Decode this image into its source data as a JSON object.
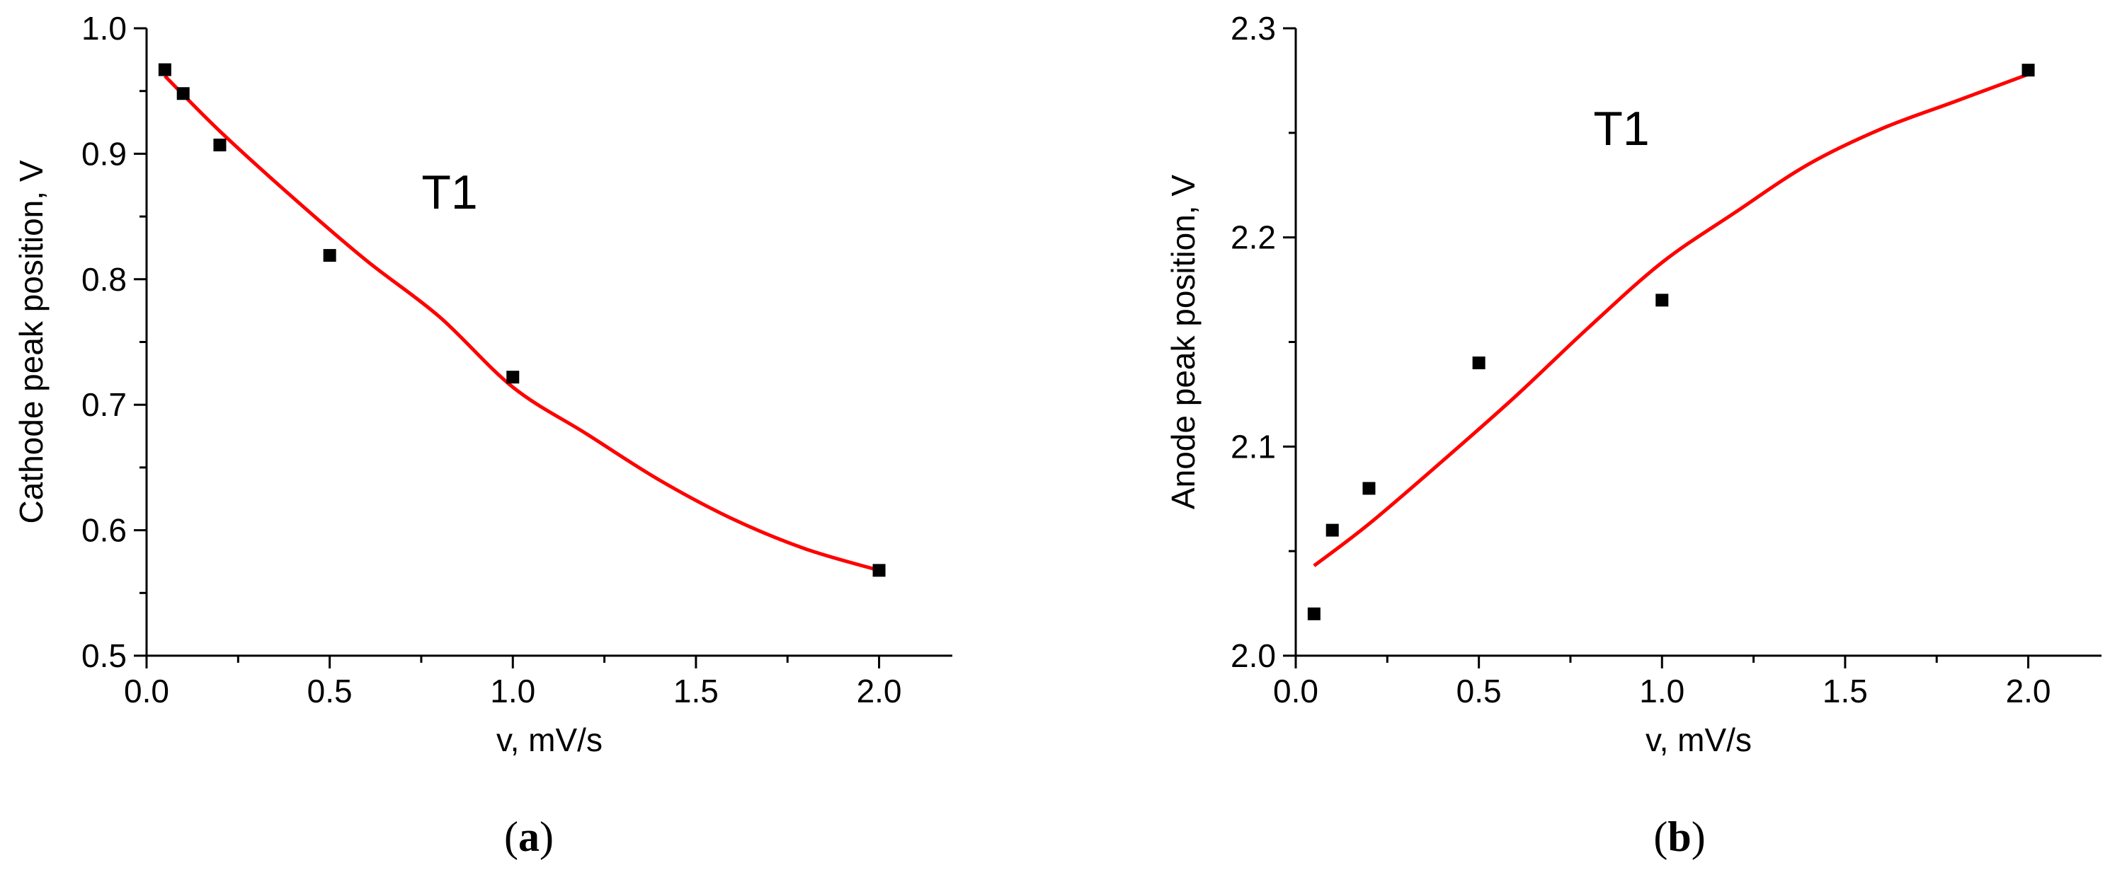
{
  "panels": [
    {
      "label_open": "(",
      "label_letter": "a",
      "label_close": ")"
    },
    {
      "label_open": "(",
      "label_letter": "b",
      "label_close": ")"
    }
  ],
  "chart_data": [
    {
      "type": "scatter",
      "xlabel": "v, mV/s",
      "ylabel": "Cathode peak position, V",
      "annotation": "T1",
      "xlim": [
        0.0,
        2.2
      ],
      "ylim": [
        0.5,
        1.0
      ],
      "xticks": [
        0.0,
        0.5,
        1.0,
        1.5,
        2.0
      ],
      "xtick_labels": [
        "0.0",
        "0.5",
        "1.0",
        "1.5",
        "2.0"
      ],
      "yticks": [
        0.5,
        0.6,
        0.7,
        0.8,
        0.9,
        1.0
      ],
      "ytick_labels": [
        "0.5",
        "0.6",
        "0.7",
        "0.8",
        "0.9",
        "1.0"
      ],
      "grid": false,
      "marker_color": "#000000",
      "fit_color": "#ff0000",
      "points": {
        "x": [
          0.05,
          0.1,
          0.2,
          0.5,
          1.0,
          2.0
        ],
        "y": [
          0.967,
          0.948,
          0.907,
          0.819,
          0.722,
          0.568
        ]
      },
      "fit_curve": {
        "x": [
          0.05,
          0.2,
          0.4,
          0.6,
          0.8,
          1.0,
          1.2,
          1.4,
          1.6,
          1.8,
          2.0
        ],
        "y": [
          0.962,
          0.918,
          0.865,
          0.815,
          0.77,
          0.714,
          0.677,
          0.64,
          0.609,
          0.585,
          0.568
        ]
      }
    },
    {
      "type": "scatter",
      "xlabel": "v, mV/s",
      "ylabel": "Anode peak position, V",
      "annotation": "T1",
      "xlim": [
        0.0,
        2.2
      ],
      "ylim": [
        2.0,
        2.3
      ],
      "xticks": [
        0.0,
        0.5,
        1.0,
        1.5,
        2.0
      ],
      "xtick_labels": [
        "0.0",
        "0.5",
        "1.0",
        "1.5",
        "2.0"
      ],
      "yticks": [
        2.0,
        2.1,
        2.2,
        2.3
      ],
      "ytick_labels": [
        "2.0",
        "2.1",
        "2.2",
        "2.3"
      ],
      "grid": false,
      "marker_color": "#000000",
      "fit_color": "#ff0000",
      "points": {
        "x": [
          0.05,
          0.1,
          0.2,
          0.5,
          1.0,
          2.0
        ],
        "y": [
          2.02,
          2.06,
          2.08,
          2.14,
          2.17,
          2.28
        ]
      },
      "fit_curve": {
        "x": [
          0.05,
          0.2,
          0.4,
          0.6,
          0.8,
          1.0,
          1.2,
          1.4,
          1.6,
          1.8,
          2.0
        ],
        "y": [
          2.043,
          2.063,
          2.093,
          2.124,
          2.157,
          2.188,
          2.212,
          2.235,
          2.252,
          2.265,
          2.278
        ]
      }
    }
  ]
}
